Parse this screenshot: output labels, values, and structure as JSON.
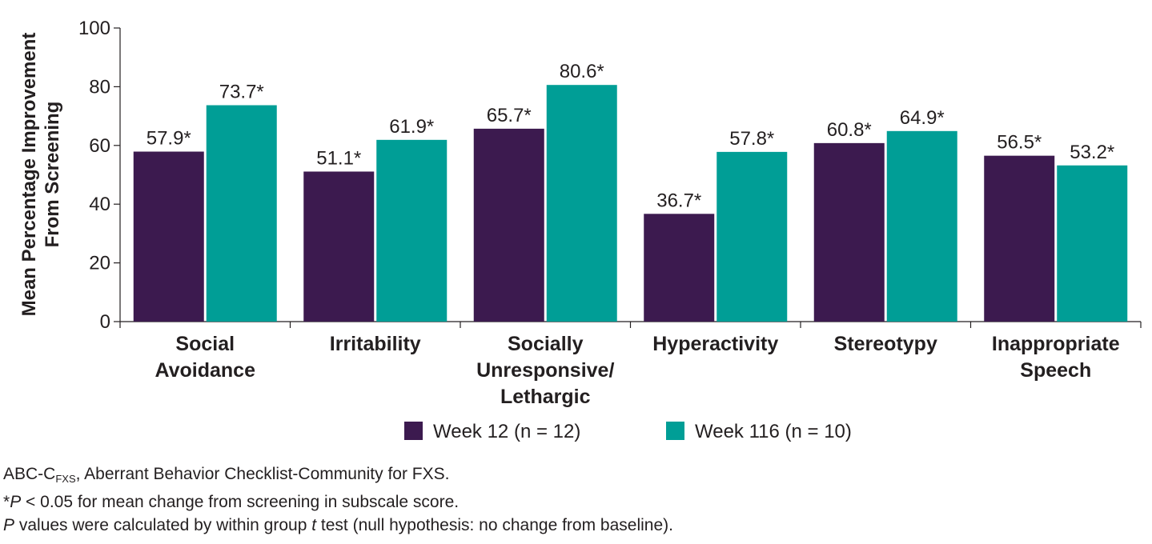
{
  "chart_data": {
    "type": "bar",
    "ylabel_line1": "Mean Percentage Improvement",
    "ylabel_line2": "From Screening",
    "ylim": [
      0,
      100
    ],
    "yticks": [
      "0",
      "20",
      "40",
      "60",
      "80",
      "100"
    ],
    "categories": [
      [
        "Social",
        "Avoidance"
      ],
      [
        "Irritability"
      ],
      [
        "Socially",
        "Unresponsive/",
        "Lethargic"
      ],
      [
        "Hyperactivity"
      ],
      [
        "Stereotypy"
      ],
      [
        "Inappropriate",
        "Speech"
      ]
    ],
    "series": [
      {
        "name": "Week 12 (n = 12)",
        "color": "#3c1a4f",
        "values": [
          57.9,
          51.1,
          65.7,
          36.7,
          60.8,
          56.5
        ],
        "labels": [
          "57.9*",
          "51.1*",
          "65.7*",
          "36.7*",
          "60.8*",
          "56.5*"
        ]
      },
      {
        "name": "Week 116 (n = 10)",
        "color": "#009e96",
        "values": [
          73.7,
          61.9,
          80.6,
          57.8,
          64.9,
          53.2
        ],
        "labels": [
          "73.7*",
          "61.9*",
          "80.6*",
          "57.8*",
          "64.9*",
          "53.2*"
        ]
      }
    ],
    "grid": false,
    "legend_position": "bottom"
  },
  "footnotes": {
    "abbrev_main": "ABC-C",
    "abbrev_sub": "FXS",
    "abbrev_rest": ", Aberrant Behavior Checklist-Community for FXS.",
    "note2_star": "*",
    "note2_p": "P",
    "note2_rest": " < 0.05 for mean change from screening in subscale score.",
    "note3_p": "P",
    "note3_mid": " values were calculated by within group ",
    "note3_t": "t",
    "note3_rest": " test (null hypothesis: no change from baseline)."
  }
}
